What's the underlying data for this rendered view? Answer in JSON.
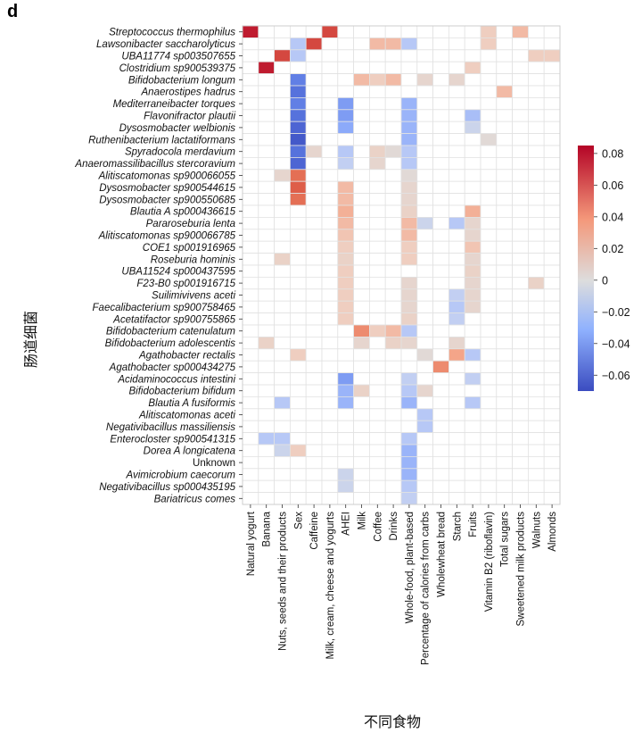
{
  "panel_label": "d",
  "chart_data": {
    "type": "heatmap",
    "xlabel": "不同食物",
    "ylabel": "肠道细菌",
    "rows": [
      "Streptococcus thermophilus",
      "Lawsonibacter saccharolyticus",
      "UBA11774 sp003507655",
      "Clostridium sp900539375",
      "Bifidobacterium longum",
      "Anaerostipes hadrus",
      "Mediterraneibacter torques",
      "Flavonifractor plautii",
      "Dysosmobacter welbionis",
      "Ruthenibacterium lactatiformans",
      "Spyradocola merdavium",
      "Anaeromassilibacillus stercoravium",
      "Alitiscatomonas sp900066055",
      "Dysosmobacter sp900544615",
      "Dysosmobacter sp900550685",
      "Blautia A sp000436615",
      "Pararoseburia lenta",
      "Alitiscatomonas sp900066785",
      "COE1 sp001916965",
      "Roseburia hominis",
      "UBA11524 sp000437595",
      "F23-B0 sp001916715",
      "Suilimivivens aceti",
      "Faecalibacterium sp900758465",
      "Acetatifactor sp900755865",
      "Bifidobacterium catenulatum",
      "Bifidobacterium adolescentis",
      "Agathobacter rectalis",
      "Agathobacter sp000434275",
      "Acidaminococcus intestini",
      "Bifidobacterium bifidum",
      "Blautia A fusiformis",
      "Alitiscatomonas aceti",
      "Negativibacillus massiliensis",
      "Enterocloster sp900541315",
      "Dorea A longicatena",
      "Unknown",
      "Avimicrobium caecorum",
      "Negativibacillus sp000435195",
      "Bariatricus comes"
    ],
    "columns": [
      "Natural yogurt",
      "Banana",
      "Nuts, seeds and their products",
      "Sex",
      "Caffeine",
      "Milk, cream, cheese and yogurts",
      "AHEI",
      "Milk",
      "Coffee",
      "Drinks",
      "Whole-food, plant-based",
      "Percentage of calories from carbs",
      "Wholewheat bread",
      "Starch",
      "Fruits",
      "Vitamin B2 (riboflavin)",
      "Total sugars",
      "Sweetened milk products",
      "Walnuts",
      "Almonds"
    ],
    "values": [
      [
        0.08,
        0,
        0,
        0,
        0,
        0.07,
        0,
        0,
        0,
        0,
        0,
        0,
        0,
        0,
        0,
        0.02,
        0,
        0.03,
        0,
        0
      ],
      [
        0,
        0,
        0,
        -0.02,
        0.07,
        0,
        0,
        0,
        0.03,
        0.03,
        -0.02,
        0,
        0,
        0,
        0,
        0.02,
        0,
        0,
        0,
        0
      ],
      [
        0,
        0,
        0.07,
        -0.02,
        0,
        0,
        0,
        0,
        0,
        0,
        0,
        0,
        0,
        0,
        0,
        0,
        0,
        0,
        0.02,
        0.02
      ],
      [
        0,
        0.08,
        0,
        0,
        0,
        0,
        0,
        0,
        0,
        0,
        0,
        0,
        0,
        0,
        0.02,
        0,
        0,
        0,
        0,
        0
      ],
      [
        0,
        0,
        0,
        -0.05,
        0,
        0,
        0,
        0.03,
        0.02,
        0.03,
        0,
        0.01,
        0,
        0.01,
        0,
        0,
        0,
        0,
        0,
        0
      ],
      [
        0,
        0,
        0,
        -0.055,
        0,
        0,
        0,
        0,
        0,
        0,
        0,
        0,
        0,
        0,
        0,
        0,
        0.03,
        0,
        0,
        0
      ],
      [
        0,
        0,
        0,
        -0.05,
        0,
        0,
        -0.04,
        0,
        0,
        0,
        -0.03,
        0,
        0,
        0,
        0,
        0,
        0,
        0,
        0,
        0
      ],
      [
        0,
        0,
        0,
        -0.055,
        0,
        0,
        -0.04,
        0,
        0,
        0,
        -0.03,
        0,
        0,
        0,
        -0.025,
        0,
        0,
        0,
        0,
        0
      ],
      [
        0,
        0,
        0,
        -0.06,
        0,
        0,
        -0.035,
        0,
        0,
        0,
        -0.03,
        0,
        0,
        0,
        -0.01,
        0,
        0,
        0,
        0,
        0
      ],
      [
        0,
        0,
        0,
        -0.065,
        0,
        0,
        0,
        0,
        0,
        0,
        -0.03,
        0,
        0,
        0,
        0,
        0.005,
        0,
        0,
        0,
        0
      ],
      [
        0,
        0,
        0,
        -0.055,
        0.01,
        0,
        -0.02,
        0,
        0.015,
        0.005,
        -0.02,
        0,
        0,
        0,
        0,
        0,
        0,
        0,
        0,
        0
      ],
      [
        0,
        0,
        0,
        -0.06,
        0,
        0,
        -0.015,
        0,
        0.01,
        0,
        -0.02,
        0,
        0,
        0,
        0,
        0,
        0,
        0,
        0,
        0
      ],
      [
        0,
        0,
        0.01,
        0.06,
        0,
        0,
        0,
        0,
        0,
        0,
        0.005,
        0,
        0,
        0,
        0,
        0,
        0,
        0,
        0,
        0
      ],
      [
        0,
        0,
        0,
        0.065,
        0,
        0,
        0.03,
        0,
        0,
        0,
        0.01,
        0,
        0,
        0,
        0,
        0,
        0,
        0,
        0,
        0
      ],
      [
        0,
        0,
        0,
        0.06,
        0,
        0,
        0.03,
        0,
        0,
        0,
        0.01,
        0,
        0,
        0,
        0,
        0,
        0,
        0,
        0,
        0
      ],
      [
        0,
        0,
        0,
        0,
        0,
        0,
        0.035,
        0,
        0,
        0,
        0.015,
        0,
        0,
        0,
        0.035,
        0,
        0,
        0,
        0,
        0
      ],
      [
        0,
        0,
        0,
        0,
        0,
        0,
        0.03,
        0,
        0,
        0,
        0.03,
        -0.01,
        0,
        -0.02,
        0.01,
        0,
        0,
        0,
        0,
        0
      ],
      [
        0,
        0,
        0,
        0,
        0,
        0,
        0.025,
        0,
        0,
        0,
        0.03,
        0,
        0,
        0,
        0.01,
        0,
        0,
        0,
        0,
        0
      ],
      [
        0,
        0,
        0,
        0,
        0,
        0,
        0.02,
        0,
        0,
        0,
        0.02,
        0,
        0,
        0,
        0.025,
        0,
        0,
        0,
        0,
        0
      ],
      [
        0,
        0,
        0.015,
        0,
        0,
        0,
        0.015,
        0,
        0,
        0,
        0.02,
        0,
        0,
        0,
        0.01,
        0,
        0,
        0,
        0,
        0
      ],
      [
        0,
        0,
        0,
        0,
        0,
        0,
        0.02,
        0,
        0,
        0,
        0,
        0,
        0,
        0,
        0.015,
        0,
        0,
        0,
        0,
        0
      ],
      [
        0,
        0,
        0,
        0,
        0,
        0,
        0.02,
        0,
        0,
        0,
        0.01,
        0,
        0,
        0,
        0.01,
        0,
        0,
        0,
        0.015,
        0
      ],
      [
        0,
        0,
        0,
        0,
        0,
        0,
        0.02,
        0,
        0,
        0,
        0.01,
        0,
        0,
        -0.015,
        0.01,
        0,
        0,
        0,
        0,
        0
      ],
      [
        0,
        0,
        0,
        0,
        0,
        0,
        0.02,
        0,
        0,
        0,
        0.01,
        0,
        0,
        -0.02,
        0.01,
        0,
        0,
        0,
        0,
        0
      ],
      [
        0,
        0,
        0,
        0,
        0,
        0,
        0.02,
        0,
        0,
        0,
        0.015,
        0,
        0,
        -0.015,
        0,
        0,
        0,
        0,
        0,
        0
      ],
      [
        0,
        0,
        0,
        0,
        0,
        0,
        0,
        0.05,
        0.02,
        0.03,
        -0.02,
        0,
        0,
        0,
        0,
        0,
        0,
        0,
        0,
        0
      ],
      [
        0,
        0.015,
        0,
        0,
        0,
        0,
        0,
        0.01,
        0,
        0.015,
        0.01,
        0,
        0,
        0.01,
        0,
        0,
        0,
        0,
        0,
        0
      ],
      [
        0,
        0,
        0,
        0.02,
        0,
        0,
        0,
        0,
        0,
        0,
        0,
        0.005,
        0,
        0.04,
        -0.02,
        0,
        0,
        0,
        0,
        0
      ],
      [
        0,
        0,
        0,
        0,
        0,
        0,
        0,
        0,
        0,
        0,
        0,
        0,
        0.05,
        0,
        0,
        0,
        0,
        0,
        0,
        0
      ],
      [
        0,
        0,
        0,
        0,
        0,
        0,
        -0.04,
        0,
        0,
        0,
        -0.015,
        0,
        0,
        0,
        -0.015,
        0,
        0,
        0,
        0,
        0
      ],
      [
        0,
        0,
        0,
        0,
        0,
        0,
        -0.03,
        0.015,
        0,
        0,
        -0.02,
        0.01,
        0,
        0,
        0,
        0,
        0,
        0,
        0,
        0
      ],
      [
        0,
        0,
        -0.02,
        0,
        0,
        0,
        -0.03,
        0,
        0,
        0,
        -0.03,
        0,
        0,
        0,
        -0.02,
        0,
        0,
        0,
        0,
        0
      ],
      [
        0,
        0,
        0,
        0,
        0,
        0,
        0,
        0,
        0,
        0,
        0,
        -0.02,
        0,
        0,
        0,
        0,
        0,
        0,
        0,
        0
      ],
      [
        0,
        0,
        0,
        0,
        0,
        0,
        0,
        0,
        0,
        0,
        0,
        -0.02,
        0,
        0,
        0,
        0,
        0,
        0,
        0,
        0
      ],
      [
        0,
        -0.02,
        -0.02,
        0,
        0,
        0,
        0,
        0,
        0,
        0,
        -0.02,
        0,
        0,
        0,
        0,
        0,
        0,
        0,
        0,
        0
      ],
      [
        0,
        0,
        -0.01,
        0.02,
        0,
        0,
        0,
        0,
        0,
        0,
        -0.03,
        0,
        0,
        0,
        0,
        0,
        0,
        0,
        0,
        0
      ],
      [
        0,
        0,
        0,
        0,
        0,
        0,
        0,
        0,
        0,
        0,
        -0.03,
        0,
        0,
        0,
        0,
        0,
        0,
        0,
        0,
        0
      ],
      [
        0,
        0,
        0,
        0,
        0,
        0,
        -0.01,
        0,
        0,
        0,
        -0.03,
        0,
        0,
        0,
        0,
        0,
        0,
        0,
        0,
        0
      ],
      [
        0,
        0,
        0,
        0,
        0,
        0,
        -0.01,
        0,
        0,
        0,
        -0.02,
        0,
        0,
        0,
        0,
        0,
        0,
        0,
        0,
        0
      ],
      [
        0,
        0,
        0,
        0,
        0,
        0,
        0,
        0,
        0,
        0,
        -0.015,
        0,
        0,
        0,
        0,
        0,
        0,
        0,
        0,
        0
      ]
    ],
    "colorbar": {
      "range": [
        -0.07,
        0.085
      ],
      "ticks": [
        0.08,
        0.06,
        0.04,
        0.02,
        0,
        -0.02,
        -0.04,
        -0.06
      ],
      "tick_labels": [
        "0.08",
        "0.06",
        "0.04",
        "0.02",
        "0",
        "−0.02",
        "−0.04",
        "−0.06"
      ],
      "colormap": "coolwarm (blue negative, red positive)"
    },
    "grid": true
  }
}
